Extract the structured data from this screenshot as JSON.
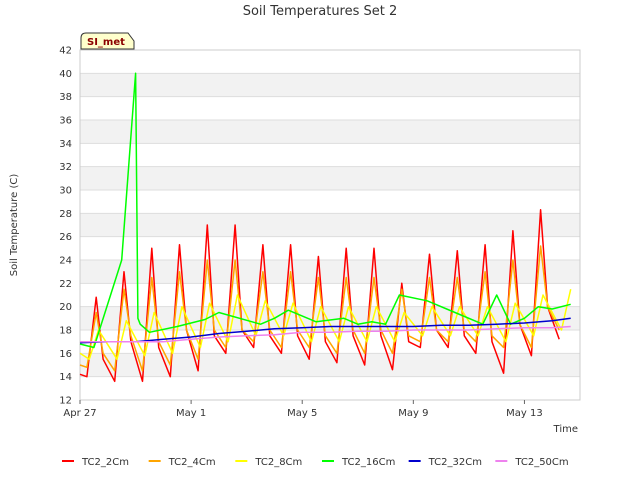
{
  "chart_data": {
    "type": "line",
    "title": "Soil Temperatures Set 2",
    "xlabel": "Time",
    "ylabel": "Soil Temperature (C)",
    "badge": "SI_met",
    "xlim": [
      "2024-04-27",
      "2024-05-15"
    ],
    "ylim": [
      12,
      42
    ],
    "yticks": [
      12,
      14,
      16,
      18,
      20,
      22,
      24,
      26,
      28,
      30,
      32,
      34,
      36,
      38,
      40,
      42
    ],
    "xticks": [
      "Apr 27",
      "May 1",
      "May 5",
      "May 9",
      "May 13"
    ],
    "grid": true,
    "legend_position": "bottom",
    "series": [
      {
        "name": "TC2_2Cm",
        "color": "#ff0000",
        "x": [
          "2024-04-27 00:00",
          "2024-04-27 06:00",
          "2024-04-27 14:00",
          "2024-04-27 20:00",
          "2024-04-28 06:00",
          "2024-04-28 14:00",
          "2024-04-28 20:00",
          "2024-04-29 06:00",
          "2024-04-29 14:00",
          "2024-04-29 20:00",
          "2024-04-30 06:00",
          "2024-04-30 14:00",
          "2024-04-30 20:00",
          "2024-05-01 06:00",
          "2024-05-01 14:00",
          "2024-05-01 20:00",
          "2024-05-02 06:00",
          "2024-05-02 14:00",
          "2024-05-02 20:00",
          "2024-05-03 06:00",
          "2024-05-03 14:00",
          "2024-05-03 20:00",
          "2024-05-04 06:00",
          "2024-05-04 14:00",
          "2024-05-04 20:00",
          "2024-05-05 06:00",
          "2024-05-05 14:00",
          "2024-05-05 20:00",
          "2024-05-06 06:00",
          "2024-05-06 14:00",
          "2024-05-06 20:00",
          "2024-05-07 06:00",
          "2024-05-07 14:00",
          "2024-05-07 20:00",
          "2024-05-08 06:00",
          "2024-05-08 14:00",
          "2024-05-08 20:00",
          "2024-05-09 06:00",
          "2024-05-09 14:00",
          "2024-05-09 20:00",
          "2024-05-10 06:00",
          "2024-05-10 14:00",
          "2024-05-10 20:00",
          "2024-05-11 06:00",
          "2024-05-11 14:00",
          "2024-05-11 20:00",
          "2024-05-12 06:00",
          "2024-05-12 14:00",
          "2024-05-12 20:00",
          "2024-05-13 06:00",
          "2024-05-13 14:00",
          "2024-05-13 20:00",
          "2024-05-14 06:00",
          "2024-05-14 14:00",
          "2024-05-14 20:00"
        ],
        "values": [
          14.2,
          14.0,
          20.8,
          15.5,
          13.6,
          23.0,
          17.0,
          13.6,
          25.0,
          16.5,
          14.0,
          25.3,
          18.0,
          14.5,
          27.0,
          17.5,
          16.0,
          27.0,
          18.0,
          16.5,
          25.3,
          17.5,
          16.0,
          25.3,
          17.5,
          15.5,
          24.3,
          17.0,
          15.2,
          25.0,
          17.5,
          15.0,
          25.0,
          17.5,
          14.6,
          22.0,
          17.0,
          16.5,
          24.5,
          18.0,
          16.5,
          24.8,
          17.5,
          16.0,
          25.3,
          17.0,
          14.3,
          26.5,
          18.5,
          15.8,
          28.3,
          20.0,
          17.2,
          null,
          null
        ]
      },
      {
        "name": "TC2_4Cm",
        "color": "#ffa500",
        "x": [
          "2024-04-27 00:00",
          "2024-04-27 06:00",
          "2024-04-27 14:00",
          "2024-04-27 20:00",
          "2024-04-28 06:00",
          "2024-04-28 14:00",
          "2024-04-28 20:00",
          "2024-04-29 06:00",
          "2024-04-29 14:00",
          "2024-04-29 20:00",
          "2024-04-30 06:00",
          "2024-04-30 14:00",
          "2024-04-30 20:00",
          "2024-05-01 06:00",
          "2024-05-01 14:00",
          "2024-05-01 20:00",
          "2024-05-02 06:00",
          "2024-05-02 14:00",
          "2024-05-02 20:00",
          "2024-05-03 06:00",
          "2024-05-03 14:00",
          "2024-05-03 20:00",
          "2024-05-04 06:00",
          "2024-05-04 14:00",
          "2024-05-04 20:00",
          "2024-05-05 06:00",
          "2024-05-05 14:00",
          "2024-05-05 20:00",
          "2024-05-06 06:00",
          "2024-05-06 14:00",
          "2024-05-06 20:00",
          "2024-05-07 06:00",
          "2024-05-07 14:00",
          "2024-05-07 20:00",
          "2024-05-08 06:00",
          "2024-05-08 14:00",
          "2024-05-08 20:00",
          "2024-05-09 06:00",
          "2024-05-09 14:00",
          "2024-05-09 20:00",
          "2024-05-10 06:00",
          "2024-05-10 14:00",
          "2024-05-10 20:00",
          "2024-05-11 06:00",
          "2024-05-11 14:00",
          "2024-05-11 20:00",
          "2024-05-12 06:00",
          "2024-05-12 14:00",
          "2024-05-12 20:00",
          "2024-05-13 06:00",
          "2024-05-13 14:00",
          "2024-05-13 20:00",
          "2024-05-14 06:00",
          "2024-05-14 14:00",
          "2024-05-14 20:00"
        ],
        "values": [
          15.0,
          14.8,
          19.5,
          16.0,
          14.5,
          21.5,
          17.5,
          14.5,
          22.5,
          17.0,
          15.0,
          23.0,
          18.0,
          15.5,
          24.0,
          18.0,
          16.5,
          24.0,
          18.0,
          17.0,
          23.0,
          18.0,
          16.5,
          23.0,
          18.0,
          16.5,
          22.5,
          17.5,
          16.0,
          22.5,
          18.0,
          16.0,
          22.5,
          18.0,
          16.0,
          21.5,
          17.5,
          17.0,
          22.5,
          18.0,
          17.0,
          22.5,
          18.0,
          17.0,
          23.0,
          17.5,
          16.5,
          24.0,
          18.5,
          16.5,
          25.2,
          20.0,
          18.0,
          null,
          null
        ]
      },
      {
        "name": "TC2_8Cm",
        "color": "#ffff00",
        "x": [
          "2024-04-27 00:00",
          "2024-04-27 08:00",
          "2024-04-27 16:00",
          "2024-04-28 08:00",
          "2024-04-28 16:00",
          "2024-04-29 08:00",
          "2024-04-29 16:00",
          "2024-04-30 08:00",
          "2024-04-30 16:00",
          "2024-05-01 08:00",
          "2024-05-01 16:00",
          "2024-05-02 08:00",
          "2024-05-02 16:00",
          "2024-05-03 08:00",
          "2024-05-03 16:00",
          "2024-05-04 08:00",
          "2024-05-04 16:00",
          "2024-05-05 08:00",
          "2024-05-05 16:00",
          "2024-05-06 08:00",
          "2024-05-06 16:00",
          "2024-05-07 08:00",
          "2024-05-07 16:00",
          "2024-05-08 08:00",
          "2024-05-08 16:00",
          "2024-05-09 08:00",
          "2024-05-09 16:00",
          "2024-05-10 08:00",
          "2024-05-10 16:00",
          "2024-05-11 08:00",
          "2024-05-11 16:00",
          "2024-05-12 08:00",
          "2024-05-12 16:00",
          "2024-05-13 08:00",
          "2024-05-13 16:00",
          "2024-05-14 08:00",
          "2024-05-14 16:00"
        ],
        "values": [
          16.0,
          15.5,
          18.0,
          15.5,
          18.8,
          15.8,
          19.5,
          16.0,
          20.0,
          16.5,
          20.3,
          17.0,
          21.0,
          17.5,
          20.5,
          17.5,
          20.3,
          17.0,
          20.0,
          17.0,
          20.0,
          17.0,
          20.0,
          17.0,
          19.5,
          17.5,
          20.0,
          17.5,
          20.0,
          17.5,
          20.0,
          17.0,
          20.3,
          17.5,
          21.0,
          18.0,
          21.5
        ]
      },
      {
        "name": "TC2_16Cm",
        "color": "#00ff00",
        "x": [
          "2024-04-27 00:00",
          "2024-04-27 12:00",
          "2024-04-28 12:00",
          "2024-04-29 00:00",
          "2024-04-29 02:00",
          "2024-04-29 04:00",
          "2024-04-29 12:00",
          "2024-04-30 12:00",
          "2024-05-01 12:00",
          "2024-05-02 00:00",
          "2024-05-03 12:00",
          "2024-05-04 00:00",
          "2024-05-04 12:00",
          "2024-05-05 12:00",
          "2024-05-06 12:00",
          "2024-05-07 00:00",
          "2024-05-07 12:00",
          "2024-05-08 00:00",
          "2024-05-08 12:00",
          "2024-05-09 12:00",
          "2024-05-10 12:00",
          "2024-05-11 12:00",
          "2024-05-12 00:00",
          "2024-05-12 12:00",
          "2024-05-13 00:00",
          "2024-05-13 12:00",
          "2024-05-14 00:00",
          "2024-05-14 16:00"
        ],
        "values": [
          16.8,
          16.5,
          24.0,
          40.0,
          19.0,
          18.5,
          17.8,
          18.3,
          18.9,
          19.5,
          18.5,
          19.0,
          19.7,
          18.7,
          19.0,
          18.5,
          18.7,
          18.5,
          21.0,
          20.5,
          19.5,
          18.5,
          21.0,
          18.5,
          19.0,
          20.0,
          19.8,
          20.2
        ]
      },
      {
        "name": "TC2_32Cm",
        "color": "#0000cd",
        "x": [
          "2024-04-27 00:00",
          "2024-04-28 00:00",
          "2024-04-29 00:00",
          "2024-04-30 00:00",
          "2024-05-01 00:00",
          "2024-05-02 00:00",
          "2024-05-03 00:00",
          "2024-05-04 00:00",
          "2024-05-05 00:00",
          "2024-05-06 00:00",
          "2024-05-07 00:00",
          "2024-05-08 00:00",
          "2024-05-09 00:00",
          "2024-05-10 00:00",
          "2024-05-11 00:00",
          "2024-05-12 00:00",
          "2024-05-13 00:00",
          "2024-05-14 00:00",
          "2024-05-14 16:00"
        ],
        "values": [
          16.9,
          17.0,
          17.0,
          17.2,
          17.4,
          17.7,
          17.9,
          18.1,
          18.2,
          18.3,
          18.3,
          18.3,
          18.3,
          18.4,
          18.4,
          18.5,
          18.6,
          18.8,
          19.0
        ]
      },
      {
        "name": "TC2_50Cm",
        "color": "#ee82ee",
        "x": [
          "2024-04-27 00:00",
          "2024-04-28 00:00",
          "2024-04-29 00:00",
          "2024-04-30 00:00",
          "2024-05-01 00:00",
          "2024-05-02 00:00",
          "2024-05-03 00:00",
          "2024-05-04 00:00",
          "2024-05-05 00:00",
          "2024-05-06 00:00",
          "2024-05-07 00:00",
          "2024-05-08 00:00",
          "2024-05-09 00:00",
          "2024-05-10 00:00",
          "2024-05-11 00:00",
          "2024-05-12 00:00",
          "2024-05-13 00:00",
          "2024-05-14 00:00",
          "2024-05-14 16:00"
        ],
        "values": [
          17.0,
          17.0,
          17.0,
          17.0,
          17.2,
          17.4,
          17.5,
          17.6,
          17.8,
          17.8,
          17.9,
          17.9,
          18.0,
          18.0,
          18.0,
          18.1,
          18.2,
          18.2,
          18.3
        ]
      }
    ]
  }
}
